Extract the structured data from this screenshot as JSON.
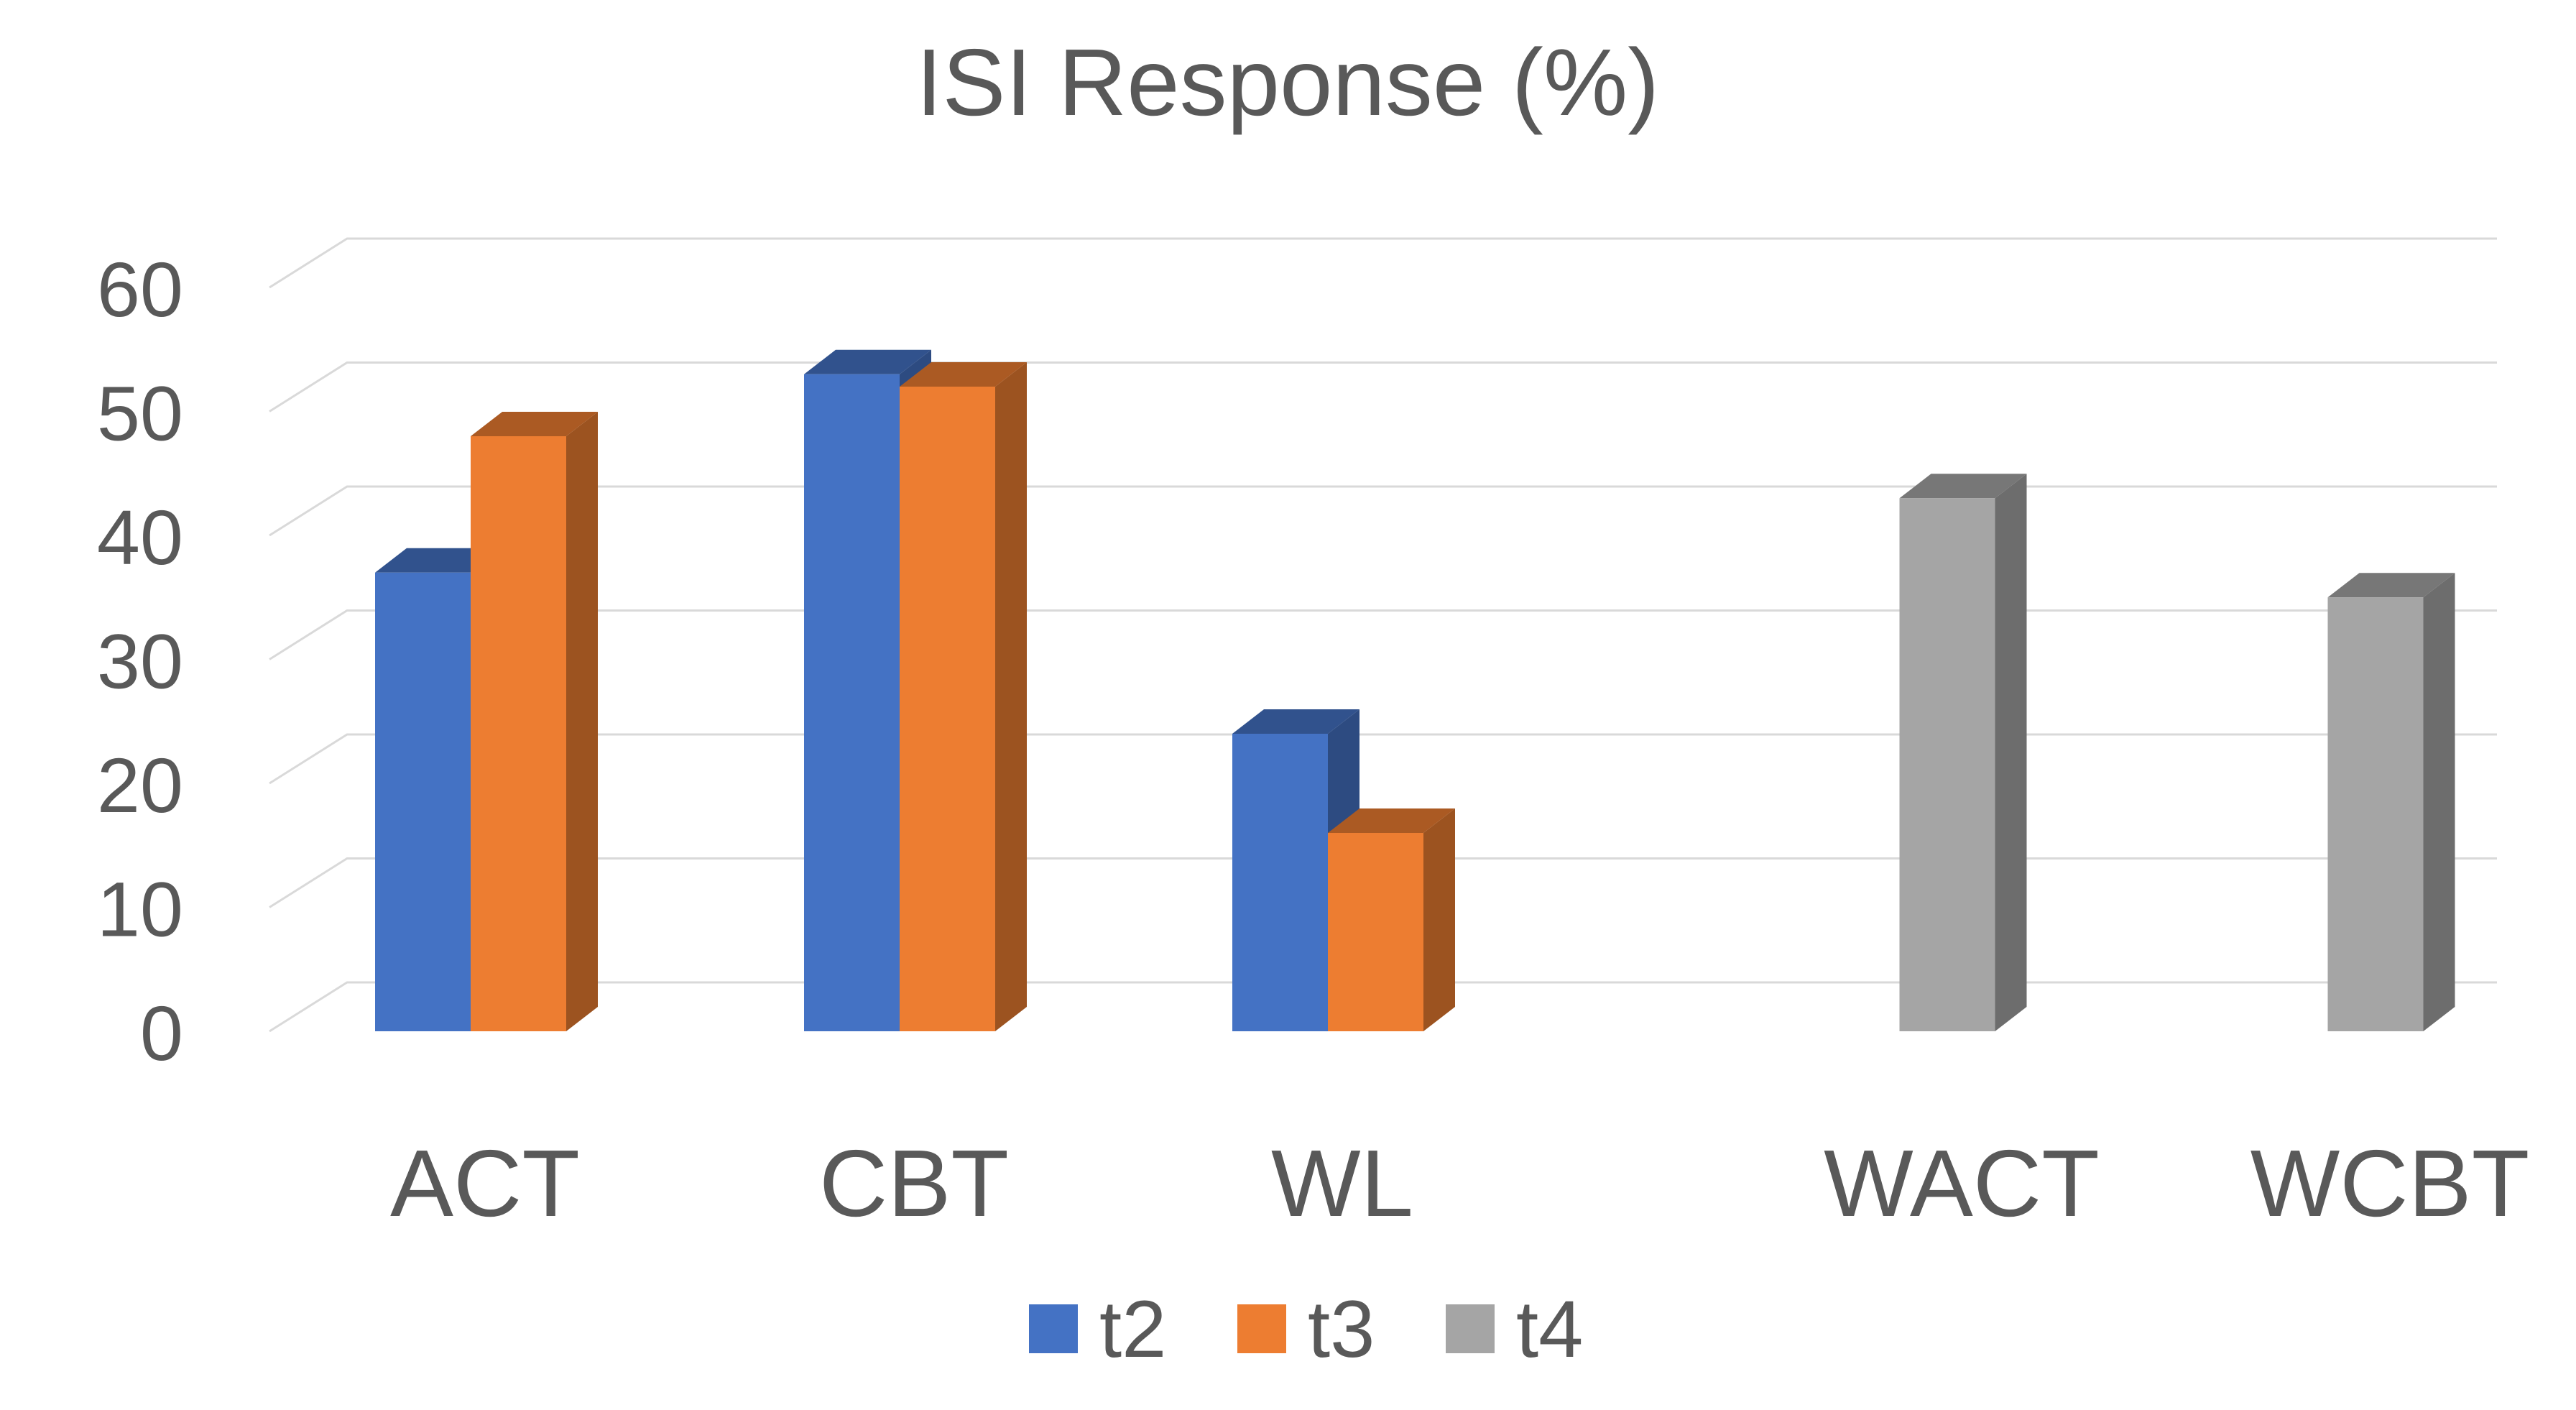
{
  "chart_data": {
    "type": "bar",
    "title": "ISI Response (%)",
    "xlabel": "",
    "ylabel": "",
    "ylim": [
      0,
      60
    ],
    "yticks": [
      0,
      10,
      20,
      30,
      40,
      50,
      60
    ],
    "grid": true,
    "legend_position": "bottom",
    "categories": [
      "ACT",
      "CBT",
      "WL",
      "WACT",
      "WCBT"
    ],
    "series": [
      {
        "name": "t2",
        "color": "#4472c4",
        "values": [
          37,
          53,
          24,
          null,
          null
        ]
      },
      {
        "name": "t3",
        "color": "#ed7d31",
        "values": [
          48,
          52,
          16,
          null,
          null
        ]
      },
      {
        "name": "t4",
        "color": "#a5a5a5",
        "values": [
          null,
          null,
          null,
          43,
          35
        ]
      }
    ]
  }
}
